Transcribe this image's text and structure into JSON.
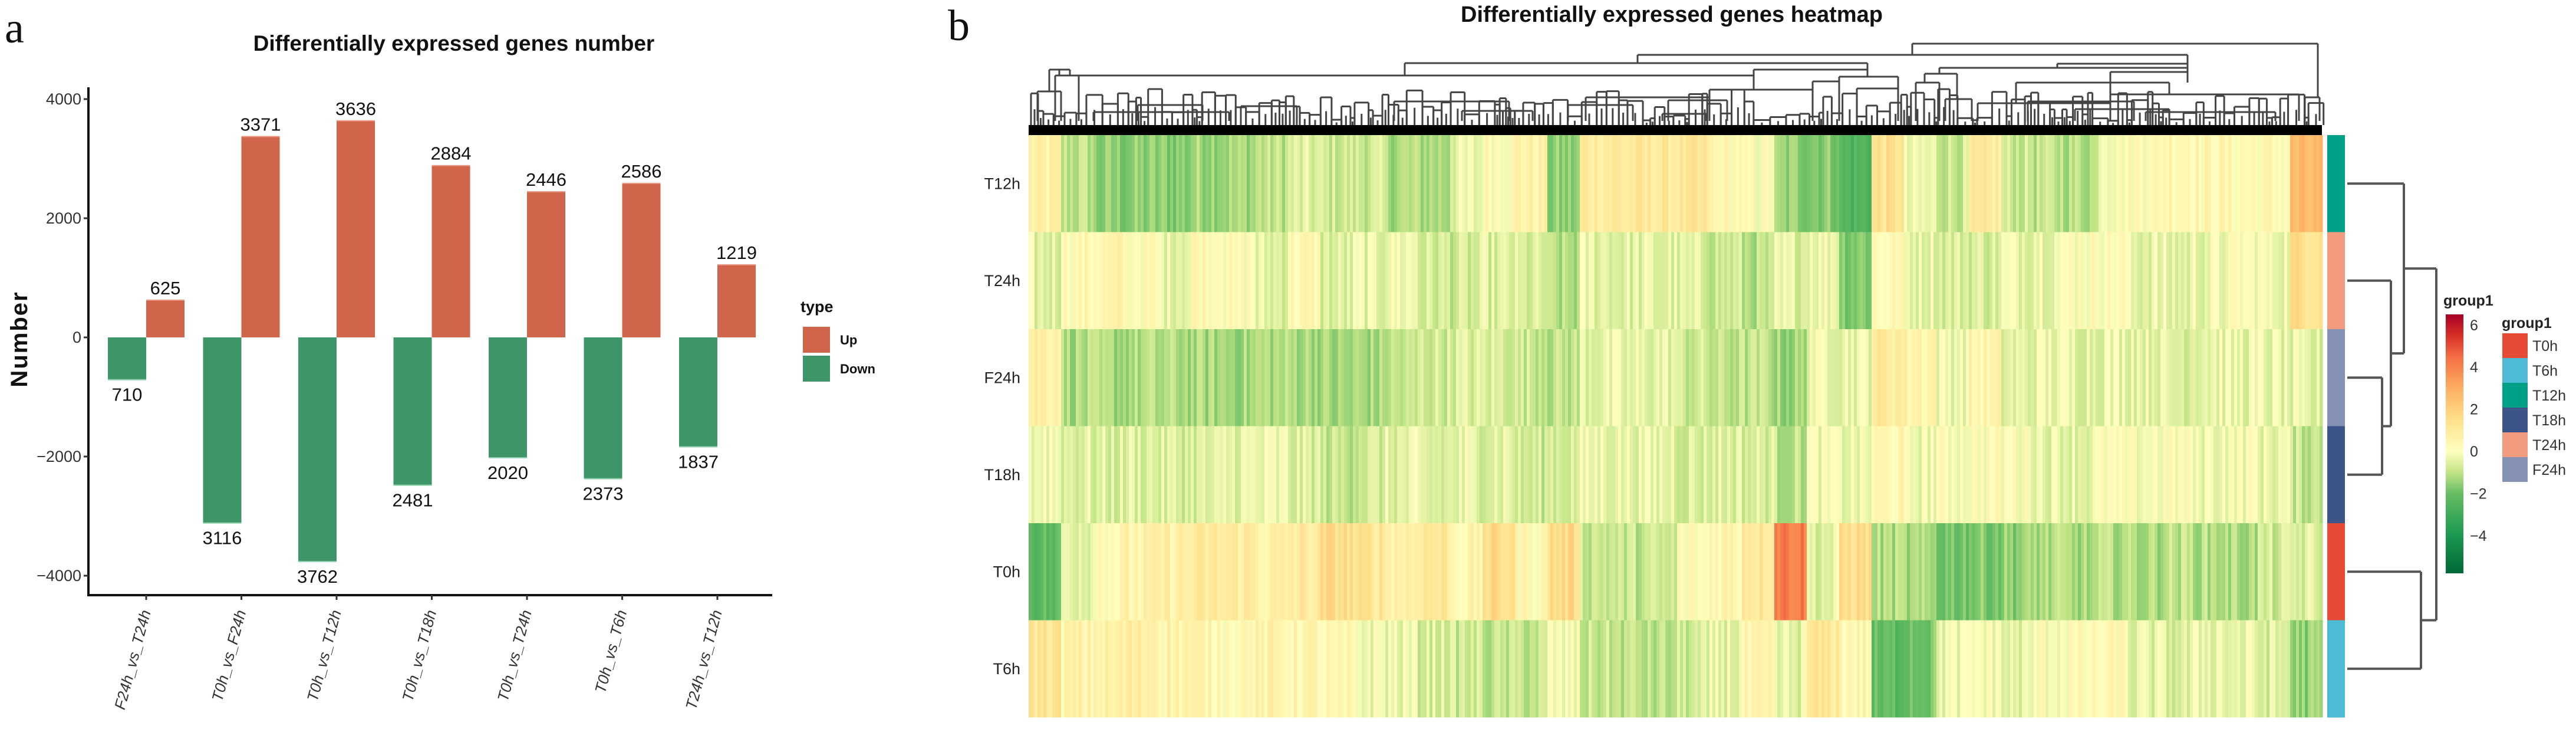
{
  "chart_data": [
    {
      "type": "bar",
      "panel_letter": "a",
      "title": "Differentially expressed genes number",
      "xlabel": "",
      "ylabel": "Number",
      "ylim": [
        -4500,
        4200
      ],
      "yticks": [
        -4000,
        -2000,
        0,
        2000,
        4000
      ],
      "ytick_labels": [
        "−4000",
        "−2000",
        "0",
        "2000",
        "4000"
      ],
      "categories": [
        "F24h_vs_T24h",
        "T0h_vs_F24h",
        "T0h_vs_T12h",
        "T0h_vs_T18h",
        "T0h_vs_T24h",
        "T0h_vs_T6h",
        "T24h_vs_T12h"
      ],
      "series": [
        {
          "name": "Up",
          "color": "#D0654B",
          "values": [
            625,
            3371,
            3636,
            2884,
            2446,
            2586,
            1219
          ]
        },
        {
          "name": "Down",
          "color": "#3E9668",
          "values": [
            -710,
            -3116,
            -3762,
            -2481,
            -2020,
            -2373,
            -1837
          ]
        }
      ],
      "data_labels": {
        "Up": [
          "625",
          "3371",
          "3636",
          "2884",
          "2446",
          "2586",
          "1219"
        ],
        "Down": [
          "710",
          "3116",
          "3762",
          "2481",
          "2020",
          "2373",
          "1837"
        ]
      },
      "legend": {
        "title": "type",
        "entries": [
          "Up",
          "Down"
        ],
        "placement": "right"
      },
      "grid": false
    },
    {
      "type": "heatmap",
      "panel_letter": "b",
      "title": "Differentially expressed genes heatmap",
      "rows": [
        "T12h",
        "T24h",
        "F24h",
        "T18h",
        "T0h",
        "T6h"
      ],
      "row_groups": [
        "T12h",
        "T24h",
        "F24h",
        "T18h",
        "T0h",
        "T6h"
      ],
      "approx_segment_values": {
        "note": "approximate z-scores, 40 column segments per row (left to right, thousands of gene columns in original)",
        "T12h": [
          0.6,
          -1.0,
          -1.6,
          -1.6,
          -1.6,
          -1.3,
          -1.3,
          -1.0,
          -0.6,
          -0.8,
          -0.8,
          -1.2,
          -1.2,
          -0.4,
          0.2,
          0.6,
          -1.6,
          1.0,
          1.0,
          1.0,
          1.0,
          0.3,
          0.0,
          -1.5,
          -1.6,
          -2.5,
          1.3,
          -0.4,
          -0.8,
          0.8,
          -0.8,
          -1.0,
          -1.1,
          0.1,
          0.2,
          0.5,
          0.4,
          0.3,
          0.3,
          2.5
        ],
        "T24h": [
          -0.5,
          0.3,
          0.4,
          0.2,
          -0.3,
          0.4,
          0.1,
          -0.5,
          0.3,
          -0.6,
          -0.4,
          -0.2,
          -0.7,
          -0.8,
          -0.6,
          -0.7,
          -1.2,
          -0.4,
          -0.5,
          -0.5,
          -0.6,
          -0.8,
          -1.1,
          -0.5,
          -0.2,
          -1.6,
          0.2,
          -0.3,
          -0.6,
          -0.6,
          -0.3,
          -0.2,
          0.1,
          0.2,
          -0.4,
          -0.5,
          -0.3,
          0.0,
          -0.2,
          1.5
        ],
        "F24h": [
          0.8,
          -1.2,
          -1.3,
          -1.2,
          -1.2,
          -1.3,
          -1.3,
          -1.2,
          -1.2,
          -1.4,
          -1.3,
          -1.0,
          -0.7,
          -0.6,
          -0.6,
          -0.8,
          -1.0,
          -0.4,
          -0.5,
          -0.4,
          -0.8,
          -1.0,
          -1.0,
          -1.4,
          -0.2,
          -0.3,
          1.0,
          0.6,
          -0.2,
          0.4,
          -0.5,
          -0.3,
          -0.4,
          -0.3,
          -0.3,
          -0.5,
          -0.3,
          -0.4,
          -0.4,
          -0.6
        ],
        "T18h": [
          -0.2,
          -0.5,
          -0.6,
          -0.5,
          -0.6,
          -0.6,
          -0.4,
          -0.4,
          -0.6,
          -0.9,
          -0.7,
          -0.5,
          -0.6,
          -0.5,
          -0.4,
          -0.8,
          -0.6,
          -0.3,
          -0.3,
          -0.4,
          -0.6,
          -0.5,
          -0.6,
          -1.0,
          -0.2,
          -0.3,
          0.3,
          -0.2,
          0.0,
          0.1,
          0.0,
          -0.3,
          -0.4,
          0.0,
          -0.1,
          0.0,
          -0.2,
          -0.1,
          -0.3,
          -0.9
        ],
        "T0h": [
          -2.2,
          -0.3,
          0.3,
          0.5,
          0.7,
          0.9,
          0.9,
          0.6,
          0.9,
          1.5,
          1.2,
          0.7,
          1.1,
          0.4,
          1.5,
          0.3,
          1.6,
          -0.8,
          -0.9,
          -0.9,
          0.1,
          0.5,
          1.2,
          4.2,
          -0.5,
          1.5,
          -1.2,
          -1.4,
          -1.8,
          -1.7,
          -1.5,
          -1.2,
          -1.3,
          -1.1,
          -1.2,
          -1.0,
          -1.1,
          -1.2,
          -0.8,
          -0.6
        ],
        "T6h": [
          1.2,
          0.5,
          0.6,
          0.8,
          0.6,
          0.4,
          0.3,
          0.5,
          0.4,
          0.2,
          -0.2,
          -0.3,
          -0.6,
          -0.8,
          -1.0,
          -0.9,
          -0.2,
          -0.9,
          -1.0,
          -1.1,
          -0.8,
          -0.4,
          0.3,
          -0.5,
          1.1,
          0.4,
          -2.2,
          -1.8,
          -0.3,
          -0.1,
          -0.5,
          0.0,
          0.1,
          0.2,
          -0.5,
          -0.6,
          -0.3,
          -0.4,
          -0.6,
          -1.5
        ]
      },
      "color_scale": {
        "title": "group1",
        "range": [
          -5.8,
          6.5
        ],
        "ticks": [
          6,
          4,
          2,
          0,
          -2,
          -4
        ],
        "tick_labels": [
          "6",
          "4",
          "2",
          "0",
          "−2",
          "−4"
        ],
        "stops": [
          {
            "v": -5.8,
            "color": "#006837"
          },
          {
            "v": -4,
            "color": "#1A9850"
          },
          {
            "v": -2,
            "color": "#66BD63"
          },
          {
            "v": -1,
            "color": "#C2E486"
          },
          {
            "v": 0,
            "color": "#FFFFBF"
          },
          {
            "v": 1.5,
            "color": "#FEE08B"
          },
          {
            "v": 3,
            "color": "#FDAE61"
          },
          {
            "v": 4.5,
            "color": "#F46D43"
          },
          {
            "v": 5.5,
            "color": "#D73027"
          },
          {
            "v": 6.5,
            "color": "#A50026"
          }
        ]
      },
      "annotation_legend": {
        "title": "group1",
        "entries": [
          {
            "label": "T0h",
            "color": "#E64B35"
          },
          {
            "label": "T6h",
            "color": "#4DBBD5"
          },
          {
            "label": "T12h",
            "color": "#00A087"
          },
          {
            "label": "T18h",
            "color": "#3C5488"
          },
          {
            "label": "T24h",
            "color": "#F39B7F"
          },
          {
            "label": "F24h",
            "color": "#8491B4"
          }
        ]
      },
      "row_dendrogram": "((T12h,(T24h,(F24h,T18h))),(T0h,T6h))",
      "column_dendrogram": "hierarchical clustering of genes"
    }
  ]
}
